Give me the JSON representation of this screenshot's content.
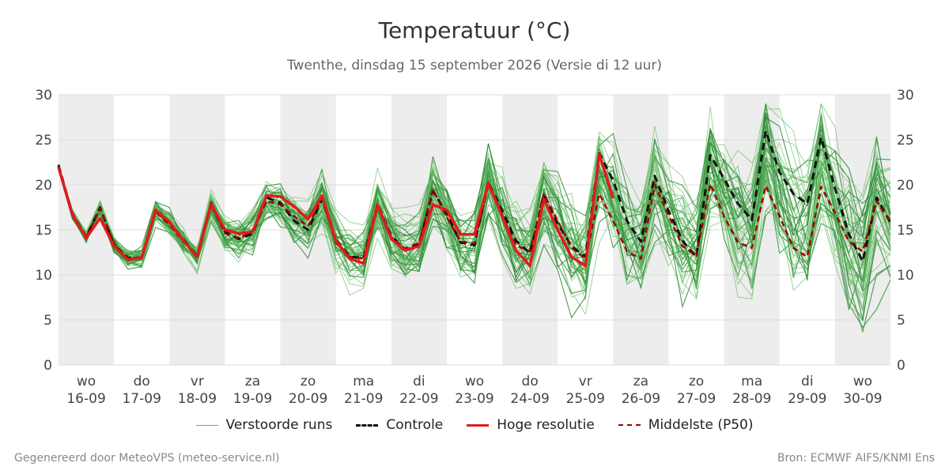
{
  "title": "Temperatuur (°C)",
  "subtitle": "Twenthe, dinsdag 15 september 2026 (Versie di 12 uur)",
  "footer_left": "Gegenereerd door MeteoVPS (meteo-service.nl)",
  "footer_right": "Bron: ECMWF AIFS/KNMI Ens",
  "legend": {
    "runs": "Verstoorde runs",
    "control": "Controle",
    "hres": "Hoge resolutie",
    "p50": "Middelste (P50)"
  },
  "colors": {
    "runs": "#3a9d3a",
    "control": "#111111",
    "hres": "#e31a1c",
    "p50": "#a00000",
    "weekend_band": "#ededed",
    "grid": "#dddddd"
  },
  "chart_data": {
    "type": "line",
    "ylim": [
      0,
      30
    ],
    "yticks": [
      0,
      5,
      10,
      15,
      20,
      25,
      30
    ],
    "xlim": [
      15.5,
      30.5
    ],
    "grid": true,
    "legend_position": "bottom",
    "x_ticks": [
      {
        "day": 16,
        "weekday": "wo",
        "date": "16-09"
      },
      {
        "day": 17,
        "weekday": "do",
        "date": "17-09"
      },
      {
        "day": 18,
        "weekday": "vr",
        "date": "18-09"
      },
      {
        "day": 19,
        "weekday": "za",
        "date": "19-09"
      },
      {
        "day": 20,
        "weekday": "zo",
        "date": "20-09"
      },
      {
        "day": 21,
        "weekday": "ma",
        "date": "21-09"
      },
      {
        "day": 22,
        "weekday": "di",
        "date": "22-09"
      },
      {
        "day": 23,
        "weekday": "wo",
        "date": "23-09"
      },
      {
        "day": 24,
        "weekday": "do",
        "date": "24-09"
      },
      {
        "day": 25,
        "weekday": "vr",
        "date": "25-09"
      },
      {
        "day": 26,
        "weekday": "za",
        "date": "26-09"
      },
      {
        "day": 27,
        "weekday": "zo",
        "date": "27-09"
      },
      {
        "day": 28,
        "weekday": "ma",
        "date": "28-09"
      },
      {
        "day": 29,
        "weekday": "di",
        "date": "29-09"
      },
      {
        "day": 30,
        "weekday": "wo",
        "date": "30-09"
      }
    ],
    "shaded_days": [
      16,
      18,
      20,
      22,
      24,
      26,
      28,
      30
    ],
    "series": [
      {
        "name": "Hoge resolutie",
        "x": [
          15.5,
          15.75,
          16.0,
          16.25,
          16.5,
          16.75,
          17.0,
          17.25,
          17.5,
          17.75,
          18.0,
          18.25,
          18.5,
          18.75,
          19.0,
          19.25,
          19.5,
          19.75,
          20.0,
          20.25,
          20.5,
          20.75,
          21.0,
          21.25,
          21.5,
          21.75,
          22.0,
          22.25,
          22.5,
          22.75,
          23.0,
          23.25,
          23.5,
          23.75,
          24.0,
          24.25,
          24.5,
          24.75,
          25.0,
          25.25,
          25.5
        ],
        "y": [
          22.0,
          16.7,
          14.1,
          16.3,
          13.2,
          11.7,
          11.9,
          17.2,
          15.9,
          13.8,
          12.0,
          17.9,
          15.0,
          14.6,
          14.8,
          18.8,
          18.7,
          17.6,
          16.2,
          18.8,
          13.8,
          11.8,
          11.3,
          17.8,
          14.0,
          12.7,
          13.2,
          17.8,
          17.2,
          14.5,
          14.5,
          20.2,
          16.5,
          12.7,
          11.0,
          18.4,
          15.0,
          12.0,
          11.0,
          23.4,
          18.5
        ]
      },
      {
        "name": "Controle",
        "x": [
          15.5,
          15.75,
          16.0,
          16.25,
          16.5,
          16.75,
          17.0,
          17.25,
          17.5,
          17.75,
          18.0,
          18.25,
          18.5,
          18.75,
          19.0,
          19.25,
          19.5,
          19.75,
          20.0,
          20.25,
          20.5,
          20.75,
          21.0,
          21.25,
          21.5,
          21.75,
          22.0,
          22.25,
          22.5,
          22.75,
          23.0,
          23.25,
          23.5,
          23.75,
          24.0,
          24.25,
          24.5,
          24.75,
          25.0,
          25.25,
          25.5,
          25.75,
          26.0,
          26.25,
          26.5,
          26.75,
          27.0,
          27.25,
          27.5,
          27.75,
          28.0,
          28.25,
          28.5,
          28.75,
          29.0,
          29.25,
          29.5,
          29.75,
          30.0,
          30.25,
          30.5
        ],
        "y": [
          22.2,
          16.8,
          14.2,
          17.5,
          13.3,
          11.9,
          11.9,
          17.1,
          15.9,
          13.9,
          12.1,
          18.0,
          14.8,
          14.0,
          14.6,
          18.6,
          18.0,
          16.0,
          15.0,
          18.4,
          13.9,
          12.0,
          11.9,
          17.9,
          14.3,
          12.8,
          13.4,
          19.3,
          16.8,
          13.6,
          13.3,
          20.3,
          17.1,
          13.8,
          12.4,
          18.9,
          15.7,
          13.2,
          12.0,
          23.5,
          20.5,
          16.0,
          13.7,
          21.0,
          17.1,
          13.8,
          12.0,
          23.3,
          20.7,
          17.9,
          16.1,
          26.0,
          21.4,
          19.0,
          17.9,
          25.3,
          19.6,
          14.5,
          11.5,
          18.6,
          15.8
        ]
      },
      {
        "name": "Middelste (P50)",
        "x": [
          15.5,
          15.75,
          16.0,
          16.25,
          16.5,
          16.75,
          17.0,
          17.25,
          17.5,
          17.75,
          18.0,
          18.25,
          18.5,
          18.75,
          19.0,
          19.25,
          19.5,
          19.75,
          20.0,
          20.25,
          20.5,
          20.75,
          21.0,
          21.25,
          21.5,
          21.75,
          22.0,
          22.25,
          22.5,
          22.75,
          23.0,
          23.25,
          23.5,
          23.75,
          24.0,
          24.25,
          24.5,
          24.75,
          25.0,
          25.25,
          25.5,
          25.75,
          26.0,
          26.25,
          26.5,
          26.75,
          27.0,
          27.25,
          27.5,
          27.75,
          28.0,
          28.25,
          28.5,
          28.75,
          29.0,
          29.25,
          29.5,
          29.75,
          30.0,
          30.25,
          30.5
        ],
        "y": [
          21.8,
          16.6,
          14.2,
          17.4,
          13.5,
          11.8,
          12.0,
          17.0,
          15.6,
          13.7,
          12.2,
          17.8,
          14.6,
          14.1,
          14.8,
          18.2,
          17.8,
          16.5,
          15.4,
          18.5,
          13.6,
          12.0,
          11.8,
          17.8,
          14.2,
          12.9,
          13.6,
          19.5,
          16.4,
          13.7,
          13.5,
          20.0,
          16.6,
          13.3,
          12.6,
          19.0,
          16.0,
          13.0,
          11.8,
          19.0,
          16.0,
          12.6,
          11.8,
          20.0,
          16.6,
          13.2,
          12.1,
          20.1,
          16.5,
          13.6,
          13.0,
          19.9,
          16.5,
          13.0,
          12.0,
          19.8,
          16.9,
          13.7,
          12.6,
          18.2,
          15.8
        ]
      }
    ]
  }
}
